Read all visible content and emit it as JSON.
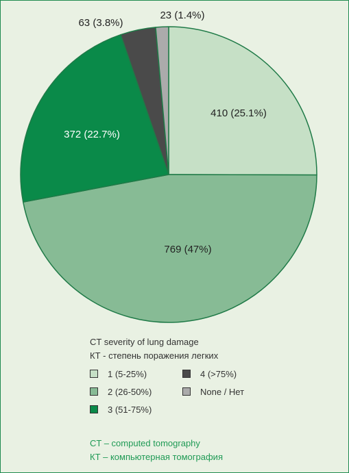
{
  "chart_data": {
    "type": "pie",
    "slices": [
      {
        "label": "1 (5-25%)",
        "value": 410,
        "pct": "25.1%",
        "display": "410 (25.1%)",
        "color": "#c6e0c6",
        "label_color": "#222222"
      },
      {
        "label": "2 (26-50%)",
        "value": 769,
        "pct": "47%",
        "display": "769 (47%)",
        "color": "#87bb95",
        "label_color": "#222222"
      },
      {
        "label": "3 (51-75%)",
        "value": 372,
        "pct": "22.7%",
        "display": "372 (22.7%)",
        "color": "#0a8a49",
        "label_color": "#ffffff"
      },
      {
        "label": "4 (>75%)",
        "value": 63,
        "pct": "3.8%",
        "display": "63 (3.8%)",
        "color": "#4a4a4a",
        "label_color": "#222222"
      },
      {
        "label": "None / Нет",
        "value": 23,
        "pct": "1.4%",
        "display": "23 (1.4%)",
        "color": "#ababab",
        "label_color": "#222222"
      }
    ],
    "start_angle": "12 o'clock",
    "direction": "clockwise",
    "legend_placement": "bottom"
  },
  "legend": {
    "title_en": "CT severity of lung damage",
    "title_ru": "КТ - степень поражения легких",
    "items": [
      {
        "label": "1 (5-25%)",
        "color": "#c6e0c6"
      },
      {
        "label": "4 (>75%)",
        "color": "#4a4a4a"
      },
      {
        "label": "2 (26-50%)",
        "color": "#87bb95"
      },
      {
        "label": "None / Нет",
        "color": "#ababab"
      },
      {
        "label": "3 (51-75%)",
        "color": "#0a8a49"
      }
    ]
  },
  "footnote": {
    "line_en": "CT – computed tomography",
    "line_ru": "КТ – компьютерная томография"
  },
  "colors": {
    "background": "#e9f1e3",
    "frame_border": "#1f8a4f",
    "footnote_text": "#1f9a55"
  }
}
